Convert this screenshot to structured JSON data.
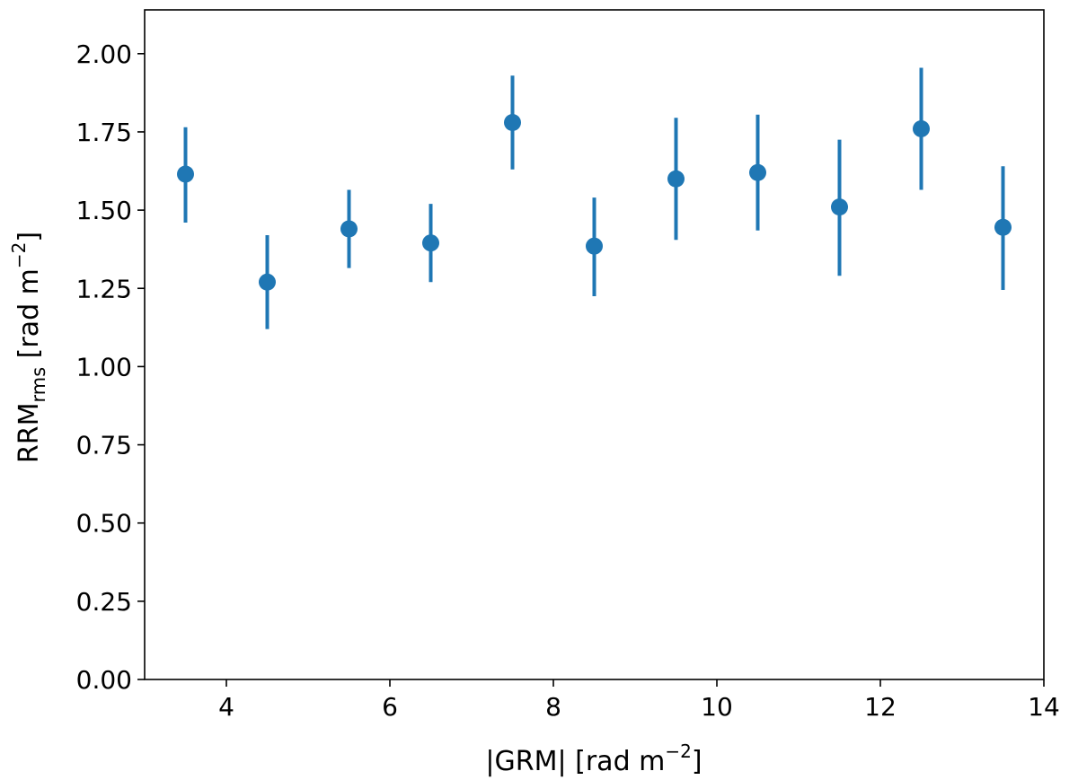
{
  "chart_data": {
    "type": "scatter",
    "title": "",
    "xlabel": "|GRM| [rad m",
    "xlabel_sup": "−2",
    "xlabel_suffix": "]",
    "ylabel": "RRM",
    "ylabel_sub": "rms",
    "ylabel_rest": " [rad m",
    "ylabel_sup": "−2",
    "ylabel_suffix": "]",
    "xlim": [
      3,
      14
    ],
    "ylim": [
      0,
      2.14
    ],
    "xticks": [
      4,
      6,
      8,
      10,
      12,
      14
    ],
    "xtick_labels": [
      "4",
      "6",
      "8",
      "10",
      "12",
      "14"
    ],
    "yticks": [
      0,
      0.25,
      0.5,
      0.75,
      1.0,
      1.25,
      1.5,
      1.75,
      2.0
    ],
    "ytick_labels": [
      "0.00",
      "0.25",
      "0.50",
      "0.75",
      "1.00",
      "1.25",
      "1.50",
      "1.75",
      "2.00"
    ],
    "grid": false,
    "color": "#1f77b4",
    "points": [
      {
        "x": 3.5,
        "y": 1.615,
        "yerr_low": 1.46,
        "yerr_high": 1.765
      },
      {
        "x": 4.5,
        "y": 1.27,
        "yerr_low": 1.12,
        "yerr_high": 1.42
      },
      {
        "x": 5.5,
        "y": 1.44,
        "yerr_low": 1.315,
        "yerr_high": 1.565
      },
      {
        "x": 6.5,
        "y": 1.395,
        "yerr_low": 1.27,
        "yerr_high": 1.52
      },
      {
        "x": 7.5,
        "y": 1.78,
        "yerr_low": 1.63,
        "yerr_high": 1.93
      },
      {
        "x": 8.5,
        "y": 1.385,
        "yerr_low": 1.225,
        "yerr_high": 1.54
      },
      {
        "x": 9.5,
        "y": 1.6,
        "yerr_low": 1.405,
        "yerr_high": 1.795
      },
      {
        "x": 10.5,
        "y": 1.62,
        "yerr_low": 1.435,
        "yerr_high": 1.805
      },
      {
        "x": 11.5,
        "y": 1.51,
        "yerr_low": 1.29,
        "yerr_high": 1.725
      },
      {
        "x": 12.5,
        "y": 1.76,
        "yerr_low": 1.565,
        "yerr_high": 1.955
      },
      {
        "x": 13.5,
        "y": 1.445,
        "yerr_low": 1.245,
        "yerr_high": 1.64
      }
    ]
  }
}
